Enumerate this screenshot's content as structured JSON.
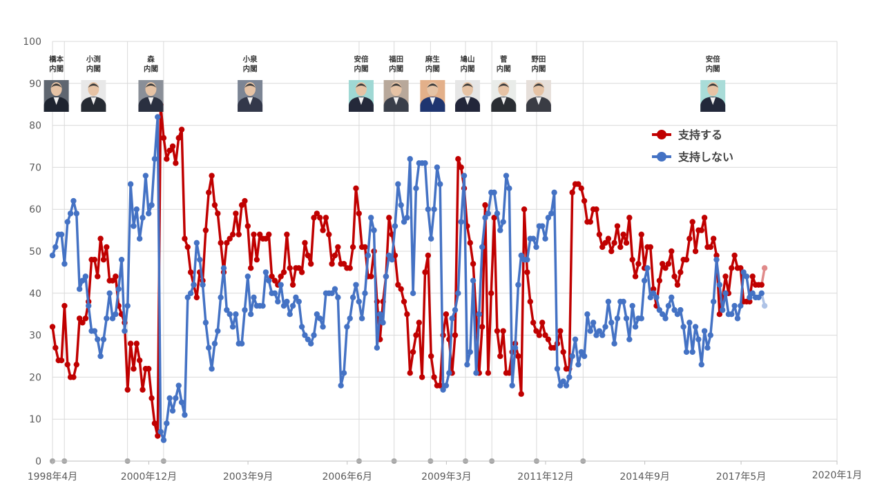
{
  "chart_data": {
    "type": "line",
    "title": "",
    "xlabel": "",
    "ylabel": "",
    "ylim": [
      0,
      100
    ],
    "yticks": [
      0,
      10,
      20,
      30,
      40,
      50,
      60,
      70,
      80,
      90,
      100
    ],
    "xlim": [
      1998.25,
      2020.0
    ],
    "xticks": [
      {
        "label": "1998年4月",
        "value": 1998.25
      },
      {
        "label": "2000年12月",
        "value": 2000.92
      },
      {
        "label": "2003年9月",
        "value": 2003.67
      },
      {
        "label": "2006年6月",
        "value": 2006.42
      },
      {
        "label": "2009年3月",
        "value": 2009.17
      },
      {
        "label": "2011年12月",
        "value": 2011.92
      },
      {
        "label": "2014年9月",
        "value": 2014.67
      },
      {
        "label": "2017年5月",
        "value": 2017.34
      },
      {
        "label": "2020年1月",
        "value": 2020.0
      }
    ],
    "legend_position": "top-right",
    "colors": {
      "support": "#C00000",
      "oppose": "#4472C4",
      "support_faded": "#E08A8A",
      "oppose_faded": "#AFC3E6",
      "grid": "#D9D9D9",
      "marker": "#A6A6A6"
    },
    "cabinets": [
      {
        "name": "橋本\n内閣",
        "start": 1998.25,
        "icon_at": 1998.3,
        "photo_bg": "#5f6670",
        "suit": "#1e2430"
      },
      {
        "name": "小渕\n内閣",
        "start": 1998.58,
        "icon_at": 1999.33,
        "photo_bg": "#e8e8e8",
        "suit": "#262b33"
      },
      {
        "name": "森\n内閣",
        "start": 2000.33,
        "icon_at": 2000.92,
        "photo_bg": "#8a8f98",
        "suit": "#2a3040"
      },
      {
        "name": "小泉\n内閣",
        "start": 2001.33,
        "icon_at": 2003.67,
        "photo_bg": "#7c8594",
        "suit": "#33384a"
      },
      {
        "name": "安倍\n内閣",
        "start": 2006.75,
        "icon_at": 2006.75,
        "photo_bg": "#9fd8d4",
        "suit": "#24293a"
      },
      {
        "name": "福田\n内閣",
        "start": 2007.72,
        "icon_at": 2007.72,
        "photo_bg": "#b8a89a",
        "suit": "#3a3f4a"
      },
      {
        "name": "麻生\n内閣",
        "start": 2008.73,
        "icon_at": 2008.73,
        "photo_bg": "#e3b08a",
        "suit": "#1f3570"
      },
      {
        "name": "鳩山\n内閣",
        "start": 2009.7,
        "icon_at": 2009.7,
        "photo_bg": "#e6e6e6",
        "suit": "#22263a"
      },
      {
        "name": "菅\n内閣",
        "start": 2010.43,
        "icon_at": 2010.7,
        "photo_bg": "#e9ece9",
        "suit": "#2a2e33"
      },
      {
        "name": "野田\n内閣",
        "start": 2011.67,
        "icon_at": 2011.67,
        "photo_bg": "#e6dfda",
        "suit": "#3a3c44"
      },
      {
        "name": "安倍\n内閣",
        "start": 2012.96,
        "icon_at": 2016.5,
        "photo_bg": "#a9dcd8",
        "suit": "#22283a"
      }
    ],
    "series": [
      {
        "name": "支持する",
        "x_start": 1998.25,
        "x_step": 0.0833,
        "values": [
          32,
          27,
          24,
          24,
          37,
          23,
          20,
          20,
          23,
          34,
          33,
          34,
          38,
          48,
          48,
          44,
          53,
          48,
          51,
          43,
          43,
          44,
          37,
          35,
          33,
          17,
          28,
          22,
          28,
          24,
          17,
          22,
          22,
          15,
          9,
          6,
          85,
          77,
          72,
          74,
          75,
          71,
          77,
          79,
          53,
          51,
          45,
          42,
          39,
          45,
          43,
          55,
          64,
          68,
          61,
          59,
          52,
          45,
          52,
          53,
          54,
          59,
          54,
          61,
          62,
          56,
          46,
          54,
          48,
          54,
          53,
          53,
          54,
          44,
          43,
          42,
          44,
          45,
          54,
          46,
          42,
          46,
          46,
          45,
          52,
          49,
          47,
          58,
          59,
          58,
          55,
          58,
          54,
          47,
          49,
          51,
          47,
          47,
          46,
          46,
          51,
          65,
          59,
          51,
          51,
          44,
          44,
          50,
          38,
          29,
          38,
          44,
          58,
          54,
          49,
          42,
          41,
          38,
          35,
          21,
          26,
          30,
          33,
          20,
          45,
          49,
          25,
          20,
          18,
          18,
          30,
          35,
          29,
          21,
          30,
          72,
          70,
          65,
          56,
          52,
          47,
          35,
          21,
          32,
          61,
          21,
          40,
          58,
          31,
          25,
          31,
          21,
          21,
          26,
          28,
          25,
          16,
          60,
          45,
          38,
          33,
          31,
          30,
          33,
          30,
          29,
          27,
          27,
          28,
          31,
          26,
          22,
          22,
          64,
          66,
          66,
          65,
          62,
          57,
          57,
          60,
          60,
          54,
          51,
          52,
          53,
          50,
          52,
          56,
          51,
          54,
          52,
          58,
          48,
          44,
          47,
          54,
          46,
          51,
          51,
          41,
          37,
          43,
          47,
          46,
          47,
          50,
          44,
          42,
          45,
          48,
          48,
          53,
          57,
          50,
          55,
          55,
          58,
          51,
          51,
          53,
          49,
          35,
          39,
          44,
          40,
          46,
          49,
          46,
          46,
          38,
          38,
          38,
          44,
          42,
          42,
          42,
          46
        ]
      },
      {
        "name": "支持しない",
        "x_start": 1998.25,
        "x_step": 0.0833,
        "values": [
          49,
          51,
          54,
          54,
          47,
          57,
          59,
          62,
          59,
          41,
          43,
          44,
          37,
          31,
          31,
          29,
          25,
          29,
          34,
          40,
          34,
          35,
          41,
          48,
          31,
          37,
          66,
          56,
          60,
          53,
          58,
          68,
          59,
          61,
          72,
          82,
          7,
          5,
          9,
          15,
          12,
          15,
          18,
          14,
          11,
          39,
          40,
          42,
          52,
          48,
          42,
          33,
          27,
          22,
          28,
          31,
          39,
          46,
          36,
          35,
          32,
          35,
          28,
          28,
          36,
          44,
          35,
          39,
          37,
          37,
          37,
          45,
          43,
          40,
          40,
          38,
          42,
          37,
          38,
          35,
          37,
          39,
          38,
          32,
          30,
          29,
          28,
          30,
          35,
          34,
          32,
          40,
          40,
          40,
          41,
          39,
          18,
          21,
          32,
          34,
          39,
          42,
          38,
          34,
          40,
          49,
          58,
          55,
          27,
          35,
          33,
          44,
          49,
          48,
          56,
          66,
          61,
          57,
          58,
          72,
          40,
          65,
          71,
          71,
          71,
          60,
          53,
          60,
          70,
          66,
          17,
          18,
          21,
          34,
          36,
          40,
          57,
          68,
          23,
          26,
          43,
          21,
          35,
          51,
          58,
          59,
          64,
          64,
          59,
          55,
          57,
          68,
          65,
          18,
          27,
          42,
          49,
          48,
          48,
          53,
          53,
          51,
          56,
          56,
          53,
          58,
          59,
          64,
          22,
          18,
          19,
          18,
          20,
          25,
          29,
          23,
          26,
          25,
          35,
          31,
          33,
          30,
          31,
          30,
          32,
          38,
          33,
          28,
          34,
          38,
          38,
          34,
          29,
          37,
          32,
          34,
          34,
          43,
          46,
          39,
          40,
          39,
          36,
          35,
          34,
          37,
          39,
          36,
          35,
          36,
          32,
          26,
          33,
          26,
          32,
          29,
          23,
          31,
          27,
          30,
          38,
          48,
          42,
          36,
          40,
          35,
          35,
          37,
          34,
          37,
          45,
          44,
          39,
          40,
          39,
          39,
          40,
          37
        ]
      }
    ],
    "legend": [
      "支持する",
      "支持しない"
    ],
    "cabinet_boundaries": [
      1998.25,
      1998.58,
      2000.33,
      2001.33,
      2006.75,
      2007.72,
      2008.73,
      2009.7,
      2010.43,
      2011.67,
      2012.96
    ]
  }
}
